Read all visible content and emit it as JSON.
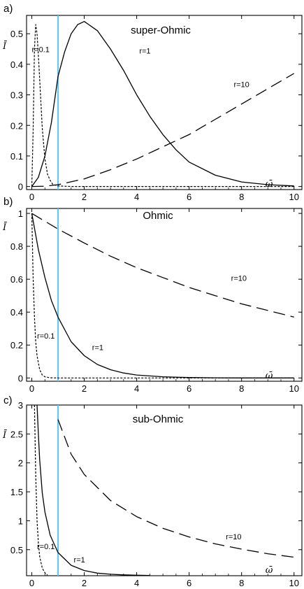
{
  "chart_data": [
    {
      "type": "line",
      "panel_label": "a)",
      "title": "super-Ohmic",
      "xlabel": "ω̄",
      "ylabel": "Ī",
      "xlim": [
        -0.2,
        10.3
      ],
      "ylim": [
        -0.01,
        0.56
      ],
      "xticks": [
        "0",
        "2",
        "4",
        "6",
        "8",
        "10"
      ],
      "yticks": [
        "0",
        "0.1",
        "0.2",
        "0.3",
        "0.4",
        "0.5"
      ],
      "vline_x": 1,
      "series": [
        {
          "name": "r=0.1",
          "style": "dotted",
          "x": [
            0,
            0.05,
            0.1,
            0.15,
            0.2,
            0.25,
            0.3,
            0.4,
            0.5,
            0.6,
            0.7,
            0.8,
            1.0,
            1.5,
            10
          ],
          "y": [
            0,
            0.18,
            0.45,
            0.53,
            0.5,
            0.43,
            0.35,
            0.19,
            0.09,
            0.04,
            0.02,
            0.007,
            0.002,
            0,
            0
          ]
        },
        {
          "name": "r=1",
          "style": "solid",
          "x": [
            0,
            0.25,
            0.5,
            0.75,
            1,
            1.25,
            1.5,
            1.75,
            2,
            2.5,
            3,
            3.5,
            4,
            4.5,
            5,
            5.5,
            6,
            7,
            8,
            9,
            10
          ],
          "y": [
            0,
            0.03,
            0.1,
            0.21,
            0.36,
            0.44,
            0.5,
            0.53,
            0.54,
            0.51,
            0.45,
            0.38,
            0.3,
            0.23,
            0.17,
            0.12,
            0.08,
            0.037,
            0.015,
            0.006,
            0.002
          ]
        },
        {
          "name": "r=10",
          "style": "dashed",
          "x": [
            0,
            0.5,
            1,
            2,
            3,
            4,
            5,
            6,
            7,
            8,
            9,
            10
          ],
          "y": [
            0,
            0.001,
            0.006,
            0.025,
            0.055,
            0.09,
            0.13,
            0.17,
            0.22,
            0.27,
            0.32,
            0.37
          ]
        }
      ],
      "annotations": [
        {
          "text": "r=0.1",
          "x": 0.0,
          "y": 0.44
        },
        {
          "text": "r=1",
          "x": 4.1,
          "y": 0.435
        },
        {
          "text": "r=10",
          "x": 7.7,
          "y": 0.325
        }
      ]
    },
    {
      "type": "line",
      "panel_label": "b)",
      "title": "Ohmic",
      "xlabel": "ω̄",
      "ylabel": "Ī",
      "xlim": [
        -0.2,
        10.3
      ],
      "ylim": [
        -0.02,
        1.03
      ],
      "xticks": [
        "0",
        "2",
        "4",
        "6",
        "8",
        "10"
      ],
      "yticks": [
        "0",
        "0.2",
        "0.4",
        "0.6",
        "0.8",
        "1"
      ],
      "vline_x": 1,
      "series": [
        {
          "name": "r=0.1",
          "style": "dotted",
          "x": [
            0,
            0.05,
            0.1,
            0.15,
            0.2,
            0.3,
            0.4,
            0.5,
            0.7,
            1.0,
            10
          ],
          "y": [
            1.0,
            0.61,
            0.37,
            0.22,
            0.135,
            0.05,
            0.018,
            0.007,
            0.001,
            0,
            0
          ]
        },
        {
          "name": "r=1",
          "style": "solid",
          "x": [
            0,
            0.25,
            0.5,
            0.75,
            1,
            1.5,
            2,
            2.5,
            3,
            3.5,
            4,
            5,
            6,
            7,
            8,
            9,
            10
          ],
          "y": [
            1.0,
            0.78,
            0.61,
            0.47,
            0.37,
            0.22,
            0.135,
            0.082,
            0.05,
            0.03,
            0.018,
            0.007,
            0.0025,
            0.001,
            0,
            0,
            0
          ]
        },
        {
          "name": "r=10",
          "style": "dashed",
          "x": [
            0,
            1,
            2,
            3,
            4,
            5,
            6,
            7,
            8,
            9,
            10
          ],
          "y": [
            1.0,
            0.905,
            0.82,
            0.74,
            0.67,
            0.61,
            0.55,
            0.5,
            0.45,
            0.41,
            0.37
          ]
        }
      ],
      "annotations": [
        {
          "text": "r=0.1",
          "x": 0.2,
          "y": 0.24
        },
        {
          "text": "r=1",
          "x": 2.3,
          "y": 0.17
        },
        {
          "text": "r=10",
          "x": 7.6,
          "y": 0.59
        }
      ]
    },
    {
      "type": "line",
      "panel_label": "c)",
      "title": "sub-Ohmic",
      "xlabel": "ω̄",
      "ylabel": "Ī",
      "xlim": [
        -0.2,
        10.3
      ],
      "ylim": [
        0.05,
        3.0
      ],
      "xticks": [
        "0",
        "2",
        "4",
        "6",
        "8",
        "10"
      ],
      "yticks": [
        "0.5",
        "1",
        "1.5",
        "2",
        "2.5",
        "3"
      ],
      "vline_x": 1,
      "series": [
        {
          "name": "r=0.1",
          "style": "dotted",
          "x": [
            0.1,
            0.15,
            0.2,
            0.25,
            0.3,
            0.4,
            0.5,
            0.6
          ],
          "y": [
            3.0,
            1.8,
            1.0,
            0.62,
            0.38,
            0.18,
            0.1,
            0.06
          ]
        },
        {
          "name": "r=1",
          "style": "solid",
          "x": [
            0.2,
            0.25,
            0.3,
            0.4,
            0.5,
            0.7,
            1.0,
            1.5,
            2,
            2.5,
            3,
            3.5,
            4,
            4.5
          ],
          "y": [
            3.0,
            2.5,
            2.05,
            1.48,
            1.15,
            0.75,
            0.45,
            0.23,
            0.14,
            0.095,
            0.075,
            0.065,
            0.058,
            0.055
          ]
        },
        {
          "name": "r=10",
          "style": "dashed",
          "x": [
            1,
            1.5,
            2,
            3,
            4,
            5,
            6,
            7,
            8,
            9,
            10
          ],
          "y": [
            2.75,
            2.15,
            1.8,
            1.35,
            1.07,
            0.87,
            0.72,
            0.6,
            0.51,
            0.43,
            0.37
          ]
        }
      ],
      "annotations": [
        {
          "text": "r=0.1",
          "x": 0.2,
          "y": 0.51
        },
        {
          "text": "r=1",
          "x": 1.6,
          "y": 0.28
        },
        {
          "text": "r=10",
          "x": 7.4,
          "y": 0.68
        }
      ]
    }
  ]
}
